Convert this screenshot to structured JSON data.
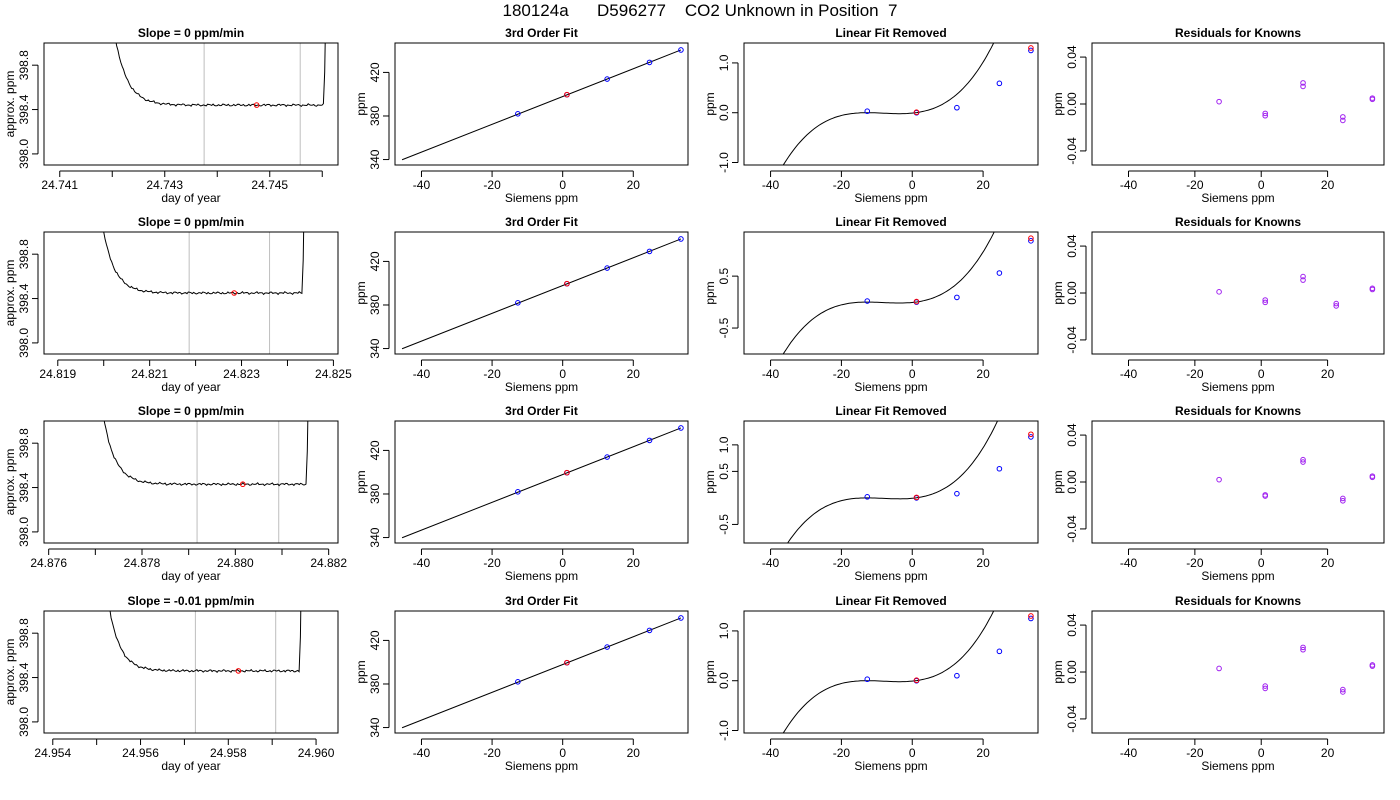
{
  "page_title": "180124a      D596277    CO2 Unknown in Position  7",
  "colors": {
    "trace": "#000000",
    "gray_lines": "#bebebe",
    "red_point": "#ff0000",
    "blue_point": "#0000ff",
    "purple_point": "#a020f0"
  },
  "chart_data": [
    {
      "type": "line",
      "panel": "time-series",
      "row": 0,
      "title": "Slope =  0  ppm/min",
      "xlabel": "day of year",
      "ylabel": "approx. ppm",
      "xlim": [
        24.7407,
        24.7463
      ],
      "ylim": [
        397.9,
        399.0
      ],
      "xticks": [
        24.741,
        24.742,
        24.743,
        24.744,
        24.745,
        24.746
      ],
      "xtick_labels": [
        "24.741",
        "",
        "24.743",
        "",
        "24.745",
        ""
      ],
      "yticks": [
        398.0,
        398.4,
        398.8
      ],
      "ytick_labels": [
        "398.0",
        "398.4",
        "398.8"
      ],
      "t_start": 24.7419,
      "t_end": 24.7461,
      "baseline": 398.44,
      "vlines": [
        24.74375,
        24.74558
      ],
      "red_point": {
        "x": 24.74475,
        "y": 398.44
      }
    },
    {
      "type": "line",
      "panel": "time-series",
      "row": 1,
      "title": "Slope =  0  ppm/min",
      "xlabel": "day of year",
      "ylabel": "approx. ppm",
      "xlim": [
        24.8187,
        24.8251
      ],
      "ylim": [
        397.9,
        399.0
      ],
      "xticks": [
        24.819,
        24.82,
        24.821,
        24.822,
        24.823,
        24.824,
        24.825
      ],
      "xtick_labels": [
        "24.819",
        "",
        "24.821",
        "",
        "24.823",
        "",
        "24.825"
      ],
      "yticks": [
        398.0,
        398.4,
        398.8
      ],
      "ytick_labels": [
        "398.0",
        "398.4",
        "398.8"
      ],
      "t_start": 24.8198,
      "t_end": 24.8244,
      "baseline": 398.45,
      "vlines": [
        24.82186,
        24.82361
      ],
      "red_point": {
        "x": 24.82284,
        "y": 398.45
      }
    },
    {
      "type": "line",
      "panel": "time-series",
      "row": 2,
      "title": "Slope =  0  ppm/min",
      "xlabel": "day of year",
      "ylabel": "approx. ppm",
      "xlim": [
        24.8759,
        24.8822
      ],
      "ylim": [
        397.9,
        399.0
      ],
      "xticks": [
        24.876,
        24.877,
        24.878,
        24.879,
        24.88,
        24.881,
        24.882
      ],
      "xtick_labels": [
        "24.876",
        "",
        "24.878",
        "",
        "24.880",
        "",
        "24.882"
      ],
      "yticks": [
        398.0,
        398.4,
        398.8
      ],
      "ytick_labels": [
        "398.0",
        "398.4",
        "398.8"
      ],
      "t_start": 24.877,
      "t_end": 24.8816,
      "baseline": 398.43,
      "vlines": [
        24.87918,
        24.88093
      ],
      "red_point": {
        "x": 24.88016,
        "y": 398.43
      }
    },
    {
      "type": "line",
      "panel": "time-series",
      "row": 3,
      "title": "Slope =  -0.01  ppm/min",
      "xlabel": "day of year",
      "ylabel": "approx. ppm",
      "xlim": [
        24.9538,
        24.9605
      ],
      "ylim": [
        397.9,
        399.0
      ],
      "xticks": [
        24.954,
        24.955,
        24.956,
        24.957,
        24.958,
        24.959,
        24.96
      ],
      "xtick_labels": [
        "24.954",
        "",
        "24.956",
        "",
        "24.958",
        "",
        "24.960"
      ],
      "yticks": [
        398.0,
        398.4,
        398.8
      ],
      "ytick_labels": [
        "398.0",
        "398.4",
        "398.8"
      ],
      "t_start": 24.9551,
      "t_end": 24.9597,
      "baseline": 398.46,
      "vlines": [
        24.95725,
        24.95908
      ],
      "red_point": {
        "x": 24.95823,
        "y": 398.46
      }
    },
    {
      "type": "line",
      "panel": "fit",
      "row": 0,
      "title": "3rd Order Fit",
      "xlabel": "Siemens ppm",
      "ylabel": "ppm",
      "xlim": [
        -47.5,
        35.5
      ],
      "ylim": [
        335,
        447
      ],
      "xticks": [
        -40,
        -20,
        0,
        20
      ],
      "xtick_labels": [
        "-40",
        "-20",
        "0",
        "20"
      ],
      "yticks": [
        340,
        380,
        420
      ],
      "ytick_labels": [
        "340",
        "380",
        "420"
      ],
      "line": {
        "x": [
          -45.5,
          33.5
        ],
        "y": [
          339.8,
          440.6
        ]
      },
      "blue_points": [
        [
          -12.7,
          382.0
        ],
        [
          1.2,
          399.5
        ],
        [
          12.6,
          413.9
        ],
        [
          24.6,
          429.2
        ],
        [
          33.5,
          440.6
        ]
      ],
      "red_points": [
        [
          1.2,
          399.6
        ]
      ]
    },
    {
      "type": "line",
      "panel": "fit",
      "row": 1,
      "title": "3rd Order Fit",
      "xlabel": "Siemens ppm",
      "ylabel": "ppm",
      "xlim": [
        -47.5,
        35.5
      ],
      "ylim": [
        335,
        447
      ],
      "xticks": [
        -40,
        -20,
        0,
        20
      ],
      "xtick_labels": [
        "-40",
        "-20",
        "0",
        "20"
      ],
      "yticks": [
        340,
        380,
        420
      ],
      "ytick_labels": [
        "340",
        "380",
        "420"
      ],
      "line": {
        "x": [
          -45.5,
          33.5
        ],
        "y": [
          339.8,
          440.6
        ]
      },
      "blue_points": [
        [
          -12.7,
          382.0
        ],
        [
          1.2,
          399.5
        ],
        [
          12.6,
          413.9
        ],
        [
          24.6,
          429.2
        ],
        [
          33.5,
          440.6
        ]
      ],
      "red_points": [
        [
          1.2,
          399.6
        ]
      ]
    },
    {
      "type": "line",
      "panel": "fit",
      "row": 2,
      "title": "3rd Order Fit",
      "xlabel": "Siemens ppm",
      "ylabel": "ppm",
      "xlim": [
        -47.5,
        35.5
      ],
      "ylim": [
        335,
        447
      ],
      "xticks": [
        -40,
        -20,
        0,
        20
      ],
      "xtick_labels": [
        "-40",
        "-20",
        "0",
        "20"
      ],
      "yticks": [
        340,
        380,
        420
      ],
      "ytick_labels": [
        "340",
        "380",
        "420"
      ],
      "line": {
        "x": [
          -45.5,
          33.5
        ],
        "y": [
          339.8,
          440.6
        ]
      },
      "blue_points": [
        [
          -12.7,
          382.0
        ],
        [
          1.2,
          399.5
        ],
        [
          12.6,
          413.9
        ],
        [
          24.6,
          429.2
        ],
        [
          33.5,
          440.6
        ]
      ],
      "red_points": [
        [
          1.2,
          399.6
        ]
      ]
    },
    {
      "type": "line",
      "panel": "fit",
      "row": 3,
      "title": "3rd Order Fit",
      "xlabel": "Siemens ppm",
      "ylabel": "ppm",
      "xlim": [
        -47.5,
        35.5
      ],
      "ylim": [
        335,
        447
      ],
      "xticks": [
        -40,
        -20,
        0,
        20
      ],
      "xtick_labels": [
        "-40",
        "-20",
        "0",
        "20"
      ],
      "yticks": [
        340,
        380,
        420
      ],
      "ytick_labels": [
        "340",
        "380",
        "420"
      ],
      "line": {
        "x": [
          -45.5,
          33.5
        ],
        "y": [
          339.8,
          440.6
        ]
      },
      "blue_points": [
        [
          -12.7,
          382.0
        ],
        [
          1.2,
          399.5
        ],
        [
          12.6,
          413.9
        ],
        [
          24.6,
          429.2
        ],
        [
          33.5,
          440.6
        ]
      ],
      "red_points": [
        [
          1.2,
          399.6
        ]
      ]
    },
    {
      "type": "line",
      "panel": "linear-removed",
      "row": 0,
      "title": "Linear Fit Removed",
      "xlabel": "Siemens ppm",
      "ylabel": "ppm",
      "xlim": [
        -47.5,
        35.5
      ],
      "ylim": [
        -1.05,
        1.4
      ],
      "xticks": [
        -40,
        -20,
        0,
        20
      ],
      "xtick_labels": [
        "-40",
        "-20",
        "0",
        "20"
      ],
      "yticks": [
        -1.0,
        0.0,
        1.0
      ],
      "ytick_labels": [
        "-1.0",
        "0.0",
        "1.0"
      ],
      "curve": {
        "x_start": -45.5,
        "x_end": 33.5,
        "a": 0.001,
        "r1": 1.0,
        "r2": -12.7
      },
      "blue_points": [
        [
          -12.7,
          0.03
        ],
        [
          1.2,
          0.0
        ],
        [
          12.6,
          0.1
        ],
        [
          24.6,
          0.59
        ],
        [
          33.5,
          1.25
        ]
      ],
      "red_points": [
        [
          1.2,
          0.01
        ],
        [
          33.5,
          1.3
        ]
      ]
    },
    {
      "type": "line",
      "panel": "linear-removed",
      "row": 1,
      "title": "Linear Fit Removed",
      "xlabel": "Siemens ppm",
      "ylabel": "ppm",
      "xlim": [
        -47.5,
        35.5
      ],
      "ylim": [
        -1.0,
        1.35
      ],
      "xticks": [
        -40,
        -20,
        0,
        20
      ],
      "xtick_labels": [
        "-40",
        "-20",
        "0",
        "20"
      ],
      "yticks": [
        -0.5,
        0.5
      ],
      "ytick_labels": [
        "-0.5",
        "0.5"
      ],
      "curve": {
        "x_start": -45.5,
        "x_end": 33.5,
        "a": 0.00095,
        "r1": 1.0,
        "r2": -12.7
      },
      "blue_points": [
        [
          -12.7,
          0.02
        ],
        [
          1.2,
          0.0
        ],
        [
          12.6,
          0.09
        ],
        [
          24.6,
          0.56
        ],
        [
          33.5,
          1.18
        ]
      ],
      "red_points": [
        [
          1.2,
          0.01
        ],
        [
          33.5,
          1.23
        ]
      ]
    },
    {
      "type": "line",
      "panel": "linear-removed",
      "row": 2,
      "title": "Linear Fit Removed",
      "xlabel": "Siemens ppm",
      "ylabel": "ppm",
      "xlim": [
        -47.5,
        35.5
      ],
      "ylim": [
        -0.85,
        1.45
      ],
      "xticks": [
        -40,
        -20,
        0,
        20
      ],
      "xtick_labels": [
        "-40",
        "-20",
        "0",
        "20"
      ],
      "yticks": [
        -0.5,
        0.5,
        1.0
      ],
      "ytick_labels": [
        "-0.5",
        "0.5",
        "1.0"
      ],
      "curve": {
        "x_start": -45.5,
        "x_end": 33.5,
        "a": 0.00093,
        "r1": 1.0,
        "r2": -12.7
      },
      "blue_points": [
        [
          -12.7,
          0.02
        ],
        [
          1.2,
          0.0
        ],
        [
          12.6,
          0.08
        ],
        [
          24.6,
          0.55
        ],
        [
          33.5,
          1.15
        ]
      ],
      "red_points": [
        [
          1.2,
          0.01
        ],
        [
          33.5,
          1.2
        ]
      ]
    },
    {
      "type": "line",
      "panel": "linear-removed",
      "row": 3,
      "title": "Linear Fit Removed",
      "xlabel": "Siemens ppm",
      "ylabel": "ppm",
      "xlim": [
        -47.5,
        35.5
      ],
      "ylim": [
        -1.05,
        1.4
      ],
      "xticks": [
        -40,
        -20,
        0,
        20
      ],
      "xtick_labels": [
        "-40",
        "-20",
        "0",
        "20"
      ],
      "yticks": [
        -1.0,
        0.0,
        1.0
      ],
      "ytick_labels": [
        "-1.0",
        "0.0",
        "1.0"
      ],
      "curve": {
        "x_start": -45.5,
        "x_end": 33.5,
        "a": 0.001,
        "r1": 1.0,
        "r2": -12.7
      },
      "blue_points": [
        [
          -12.7,
          0.03
        ],
        [
          1.2,
          0.0
        ],
        [
          12.6,
          0.1
        ],
        [
          24.6,
          0.59
        ],
        [
          33.5,
          1.25
        ]
      ],
      "red_points": [
        [
          1.2,
          0.01
        ],
        [
          33.5,
          1.3
        ]
      ]
    },
    {
      "type": "scatter",
      "panel": "residuals",
      "row": 0,
      "title": "Residuals for Knowns",
      "xlabel": "Siemens ppm",
      "ylabel": "ppm",
      "xlim": [
        -51,
        37
      ],
      "ylim": [
        -0.052,
        0.052
      ],
      "xticks": [
        -40,
        -20,
        0,
        20
      ],
      "xtick_labels": [
        "-40",
        "-20",
        "0",
        "20"
      ],
      "yticks": [
        -0.04,
        0.0,
        0.04
      ],
      "ytick_labels": [
        "-0.04",
        "0.00",
        "0.04"
      ],
      "points": [
        [
          -12.7,
          0.002
        ],
        [
          1.2,
          -0.008
        ],
        [
          1.2,
          -0.01
        ],
        [
          12.6,
          0.015
        ],
        [
          12.6,
          0.018
        ],
        [
          24.6,
          -0.011
        ],
        [
          24.6,
          -0.014
        ],
        [
          33.5,
          0.004
        ],
        [
          33.5,
          0.005
        ]
      ]
    },
    {
      "type": "scatter",
      "panel": "residuals",
      "row": 1,
      "title": "Residuals for Knowns",
      "xlabel": "Siemens ppm",
      "ylabel": "ppm",
      "xlim": [
        -51,
        37
      ],
      "ylim": [
        -0.052,
        0.052
      ],
      "xticks": [
        -40,
        -20,
        0,
        20
      ],
      "xtick_labels": [
        "-40",
        "-20",
        "0",
        "20"
      ],
      "yticks": [
        -0.04,
        0.0,
        0.04
      ],
      "ytick_labels": [
        "-0.04",
        "0.00",
        "0.04"
      ],
      "points": [
        [
          -12.7,
          0.001
        ],
        [
          1.2,
          -0.006
        ],
        [
          1.2,
          -0.008
        ],
        [
          12.6,
          0.011
        ],
        [
          12.6,
          0.014
        ],
        [
          22.6,
          -0.009
        ],
        [
          22.6,
          -0.011
        ],
        [
          33.5,
          0.003
        ],
        [
          33.5,
          0.004
        ]
      ]
    },
    {
      "type": "scatter",
      "panel": "residuals",
      "row": 2,
      "title": "Residuals for Knowns",
      "xlabel": "Siemens ppm",
      "ylabel": "ppm",
      "xlim": [
        -51,
        37
      ],
      "ylim": [
        -0.052,
        0.052
      ],
      "xticks": [
        -40,
        -20,
        0,
        20
      ],
      "xtick_labels": [
        "-40",
        "-20",
        "0",
        "20"
      ],
      "yticks": [
        -0.04,
        0.0,
        0.04
      ],
      "ytick_labels": [
        "-0.04",
        "0.00",
        "0.04"
      ],
      "points": [
        [
          -12.7,
          0.002
        ],
        [
          1.2,
          -0.011
        ],
        [
          1.2,
          -0.012
        ],
        [
          12.6,
          0.017
        ],
        [
          12.6,
          0.019
        ],
        [
          24.6,
          -0.014
        ],
        [
          24.6,
          -0.016
        ],
        [
          33.5,
          0.004
        ],
        [
          33.5,
          0.005
        ]
      ]
    },
    {
      "type": "scatter",
      "panel": "residuals",
      "row": 3,
      "title": "Residuals for Knowns",
      "xlabel": "Siemens ppm",
      "ylabel": "ppm",
      "xlim": [
        -51,
        37
      ],
      "ylim": [
        -0.052,
        0.052
      ],
      "xticks": [
        -40,
        -20,
        0,
        20
      ],
      "xtick_labels": [
        "-40",
        "-20",
        "0",
        "20"
      ],
      "yticks": [
        -0.04,
        0.0,
        0.04
      ],
      "ytick_labels": [
        "-0.04",
        "0.00",
        "0.04"
      ],
      "points": [
        [
          -12.7,
          0.003
        ],
        [
          1.2,
          -0.012
        ],
        [
          1.2,
          -0.014
        ],
        [
          12.6,
          0.019
        ],
        [
          12.6,
          0.021
        ],
        [
          24.6,
          -0.015
        ],
        [
          24.6,
          -0.017
        ],
        [
          33.5,
          0.005
        ],
        [
          33.5,
          0.006
        ]
      ]
    }
  ]
}
